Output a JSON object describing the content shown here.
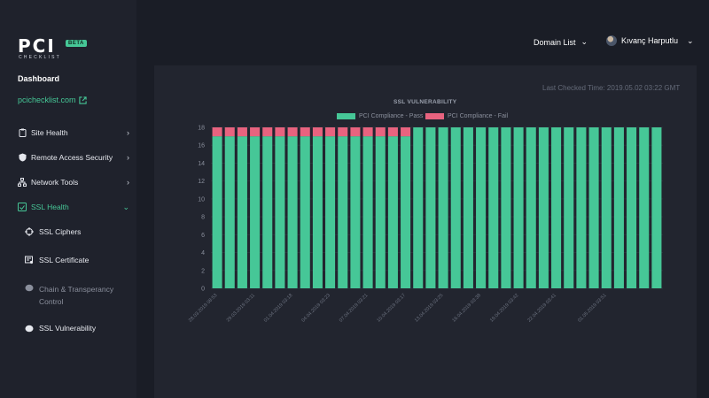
{
  "brand": {
    "logo_text": "PCI",
    "logo_sub": "CHECKLIST",
    "beta_label": "BETA",
    "accent": "#46c797"
  },
  "sidebar": {
    "dashboard_label": "Dashboard",
    "site_link": "pcichecklist.com",
    "items": [
      {
        "label": "Site Health",
        "icon": "clipboard-icon"
      },
      {
        "label": "Remote Access Security",
        "icon": "shield-icon"
      },
      {
        "label": "Network Tools",
        "icon": "network-icon"
      },
      {
        "label": "SSL Health",
        "icon": "ssl-icon"
      }
    ],
    "sub_items": [
      {
        "label": "SSL Ciphers",
        "icon": "crosshair-icon"
      },
      {
        "label": "SSL Certificate",
        "icon": "certificate-icon"
      },
      {
        "label": "Chain & Transperancy Control",
        "icon": "brain-icon"
      },
      {
        "label": "SSL Vulnerability",
        "icon": "brain-icon"
      }
    ]
  },
  "topbar": {
    "domain_list_label": "Domain List",
    "user_name": "Kıvanç Harputlu"
  },
  "main": {
    "last_checked": "Last Checked Time: 2019.05.02 03:22 GMT"
  },
  "chart_data": {
    "type": "bar",
    "stacked": true,
    "title": "SSL VULNERABILITY",
    "ylim": [
      0,
      18
    ],
    "yticks": [
      0,
      2,
      4,
      6,
      8,
      10,
      12,
      14,
      16,
      18
    ],
    "grid": true,
    "legend_position": "top",
    "series": [
      {
        "name": "PCI Compliance - Pass",
        "color": "#46c797",
        "values": [
          17,
          17,
          17,
          17,
          17,
          17,
          17,
          17,
          17,
          17,
          17,
          17,
          17,
          17,
          17,
          17,
          18,
          18,
          18,
          18,
          18,
          18,
          18,
          18,
          18,
          18,
          18,
          18,
          18,
          18,
          18,
          18,
          18,
          18,
          18,
          18
        ]
      },
      {
        "name": "PCI Compliance - Fail",
        "color": "#e8637f",
        "values": [
          1,
          1,
          1,
          1,
          1,
          1,
          1,
          1,
          1,
          1,
          1,
          1,
          1,
          1,
          1,
          1,
          0,
          0,
          0,
          0,
          0,
          0,
          0,
          0,
          0,
          0,
          0,
          0,
          0,
          0,
          0,
          0,
          0,
          0,
          0,
          0
        ]
      }
    ],
    "category_count": 36,
    "x_tick_labels": [
      {
        "index": 0,
        "label": "28.03.2019 08:53"
      },
      {
        "index": 3,
        "label": "29.03.2019 03:11"
      },
      {
        "index": 6,
        "label": "01.04.2019 03:18"
      },
      {
        "index": 9,
        "label": "04.04.2019 03:23"
      },
      {
        "index": 12,
        "label": "07.04.2019 03:21"
      },
      {
        "index": 15,
        "label": "10.04.2019 03:17"
      },
      {
        "index": 18,
        "label": "13.04.2019 03:25"
      },
      {
        "index": 21,
        "label": "16.04.2019 03:38"
      },
      {
        "index": 24,
        "label": "19.04.2019 03:42"
      },
      {
        "index": 27,
        "label": "22.04.2019 03:41"
      },
      {
        "index": 31,
        "label": "01.05.2019 03:51"
      }
    ]
  }
}
